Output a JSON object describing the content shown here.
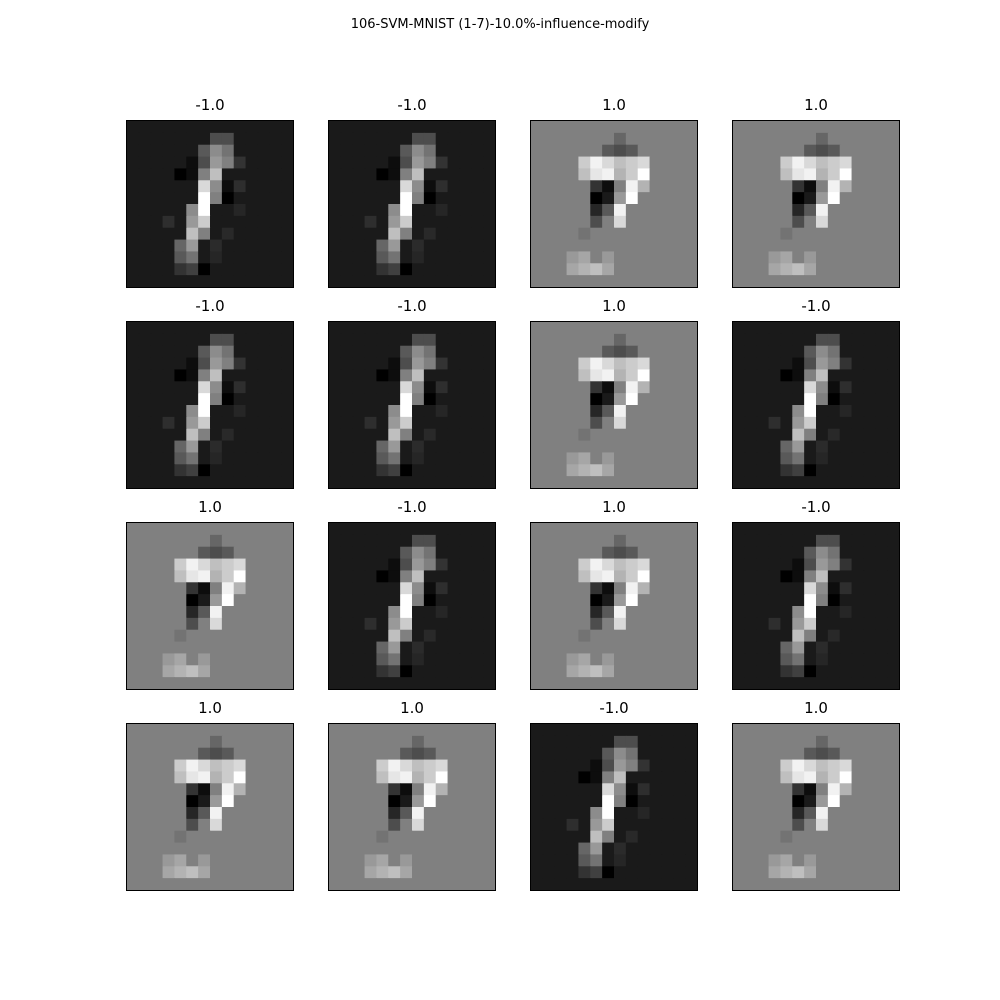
{
  "figure": {
    "title": "106-SVM-MNIST (1-7)-10.0%-influence-modify"
  },
  "panels": [
    {
      "label": "-1.0",
      "digit": "one"
    },
    {
      "label": "-1.0",
      "digit": "one"
    },
    {
      "label": "1.0",
      "digit": "seven"
    },
    {
      "label": "1.0",
      "digit": "seven"
    },
    {
      "label": "-1.0",
      "digit": "one"
    },
    {
      "label": "-1.0",
      "digit": "one"
    },
    {
      "label": "1.0",
      "digit": "seven"
    },
    {
      "label": "-1.0",
      "digit": "one"
    },
    {
      "label": "1.0",
      "digit": "seven"
    },
    {
      "label": "-1.0",
      "digit": "one"
    },
    {
      "label": "1.0",
      "digit": "seven"
    },
    {
      "label": "-1.0",
      "digit": "one"
    },
    {
      "label": "1.0",
      "digit": "seven"
    },
    {
      "label": "1.0",
      "digit": "seven"
    },
    {
      "label": "-1.0",
      "digit": "one"
    },
    {
      "label": "1.0",
      "digit": "seven"
    }
  ]
}
